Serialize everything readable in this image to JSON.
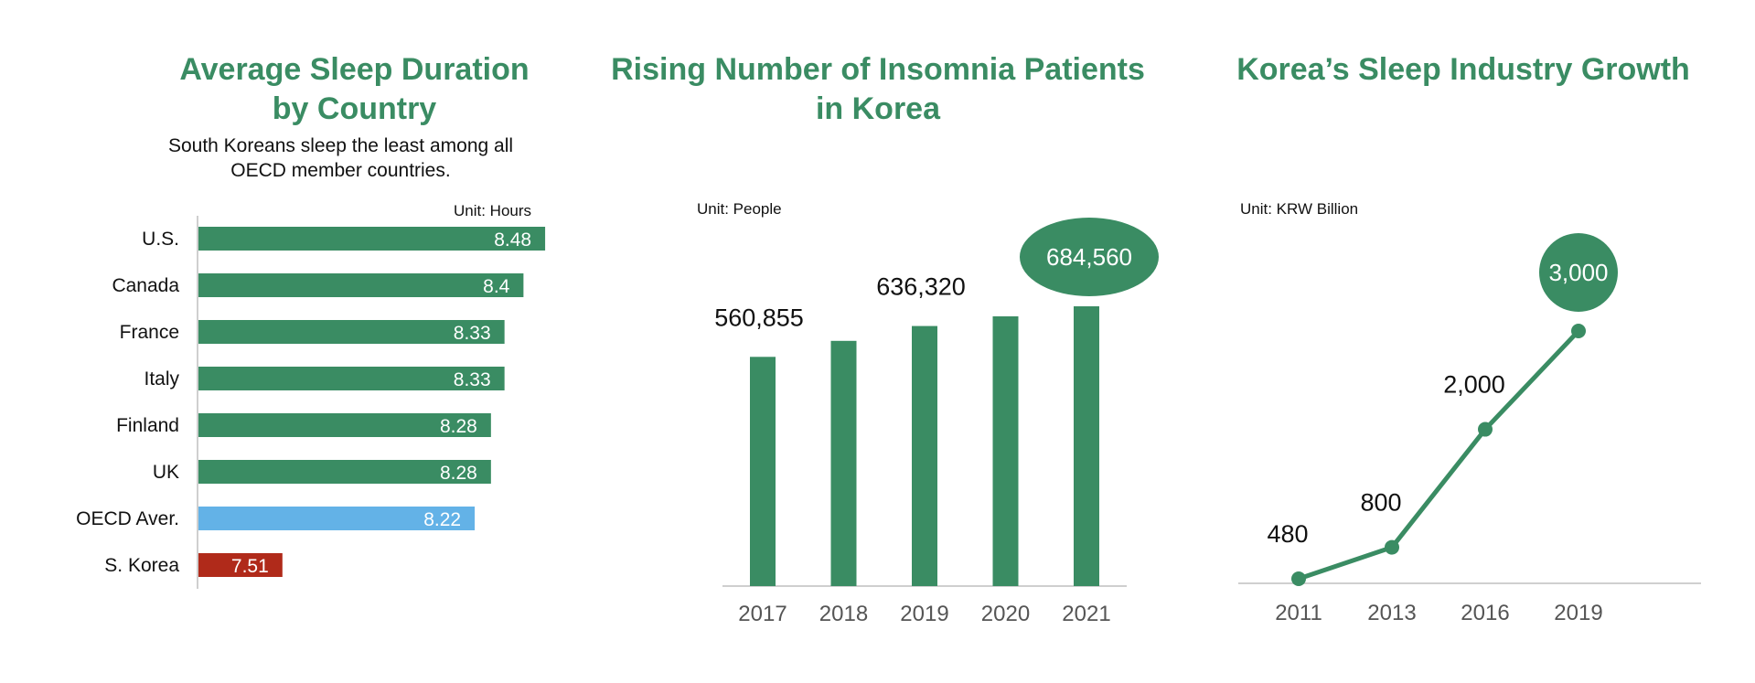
{
  "colors": {
    "accent": "#3a8c63",
    "oecd": "#63b2e7",
    "korea": "#b02a1a",
    "axis": "#cfcfcf",
    "tick_text": "#555555"
  },
  "chart_data": [
    {
      "type": "bar",
      "orientation": "horizontal",
      "title_line1": "Average Sleep Duration",
      "title_line2": "by Country",
      "subtitle_line1": "South Koreans sleep the least among all",
      "subtitle_line2": "OECD member countries.",
      "unit": "Unit: Hours",
      "categories": [
        "U.S.",
        "Canada",
        "France",
        "Italy",
        "Finland",
        "UK",
        "OECD Aver.",
        "S. Korea"
      ],
      "values": [
        8.48,
        8.4,
        8.33,
        8.33,
        8.28,
        8.28,
        8.22,
        7.51
      ],
      "value_labels": [
        "8.48",
        "8.4",
        "8.33",
        "8.33",
        "8.28",
        "8.28",
        "8.22",
        "7.51"
      ],
      "bar_colors": [
        "#3a8c63",
        "#3a8c63",
        "#3a8c63",
        "#3a8c63",
        "#3a8c63",
        "#3a8c63",
        "#63b2e7",
        "#b02a1a"
      ],
      "xlim": [
        7.2,
        8.5
      ],
      "grid": false
    },
    {
      "type": "bar",
      "title_line1": "Rising Number of Insomnia Patients",
      "title_line2": "in Korea",
      "unit": "Unit: People",
      "categories": [
        "2017",
        "2018",
        "2019",
        "2020",
        "2021"
      ],
      "values": [
        560855,
        600000,
        636320,
        660000,
        684560
      ],
      "labels": [
        "560,855",
        "",
        "636,320",
        "",
        "684,560"
      ],
      "highlight_index": 4,
      "ylim": [
        0,
        684560
      ],
      "grid": false
    },
    {
      "type": "line",
      "title": "Korea’s Sleep Industry Growth",
      "unit": "Unit: KRW Billion",
      "categories": [
        "2011",
        "2013",
        "2016",
        "2019"
      ],
      "values": [
        480,
        800,
        2000,
        3000
      ],
      "labels": [
        "480",
        "800",
        "2,000",
        "3,000"
      ],
      "highlight_index": 3,
      "ylim": [
        0,
        3000
      ],
      "grid": false
    }
  ]
}
